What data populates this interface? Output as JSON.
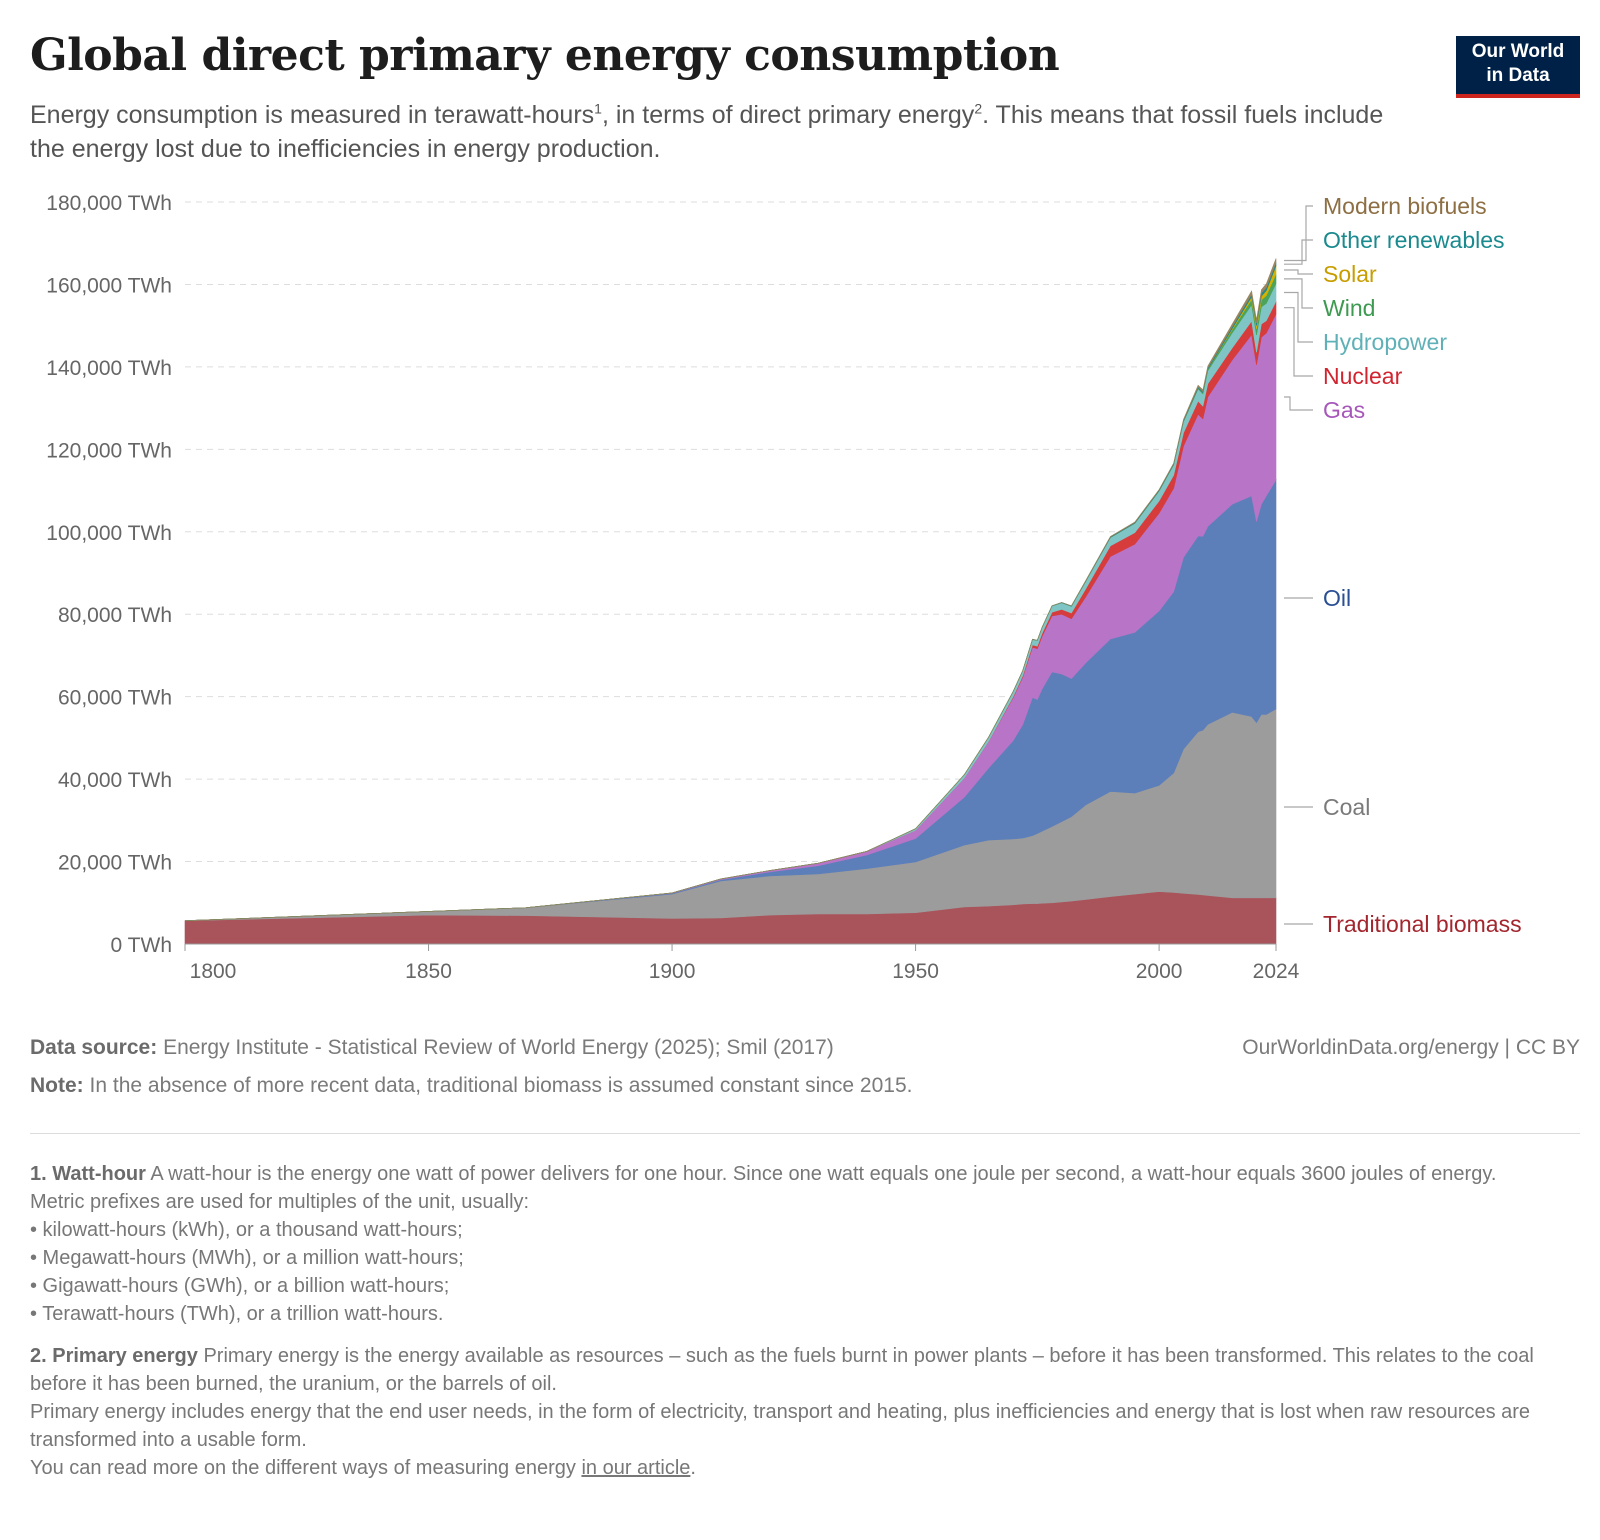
{
  "header": {
    "title": "Global direct primary energy consumption",
    "subtitle_part1": "Energy consumption is measured in terawatt-hours",
    "subtitle_sup1": "1",
    "subtitle_part2": ", in terms of direct primary energy",
    "subtitle_sup2": "2",
    "subtitle_part3": ". This means that fossil fuels include the energy lost due to inefficiencies in energy production.",
    "logo_line1": "Our World",
    "logo_line2": "in Data"
  },
  "footer": {
    "source_label": "Data source:",
    "source_text": "Energy Institute - Statistical Review of World Energy (2025); Smil (2017)",
    "source_right": "OurWorldinData.org/energy | CC BY",
    "note_label": "Note:",
    "note_text": "In the absence of more recent data, traditional biomass is assumed constant since 2015."
  },
  "footnotes": {
    "fn1_title": "1. Watt-hour",
    "fn1_text": "A watt-hour is the energy one watt of power delivers for one hour. Since one watt equals one joule per second, a watt-hour equals 3600 joules of energy.",
    "fn1_line2": "Metric prefixes are used for multiples of the unit, usually:",
    "fn1_bullets": [
      "• kilowatt-hours (kWh), or a thousand watt-hours;",
      "• Megawatt-hours (MWh), or a million watt-hours;",
      "• Gigawatt-hours (GWh), or a billion watt-hours;",
      "• Terawatt-hours (TWh), or a trillion watt-hours."
    ],
    "fn2_title": "2. Primary energy",
    "fn2_text": "Primary energy is the energy available as resources – such as the fuels burnt in power plants – before it has been transformed. This relates to the coal before it has been burned, the uranium, or the barrels of oil.",
    "fn2_line2": "Primary energy includes energy that the end user needs, in the form of electricity, transport and heating, plus inefficiencies and energy that is lost when raw resources are transformed into a usable form.",
    "fn2_line3_pre": "You can read more on the different ways of measuring energy ",
    "fn2_link": "in our article",
    "fn2_line3_post": "."
  },
  "chart_data": {
    "type": "area",
    "stacked": true,
    "title": "Global direct primary energy consumption",
    "ylim": [
      0,
      180000
    ],
    "xlim": [
      1800,
      2024
    ],
    "y_ticks": [
      0,
      20000,
      40000,
      60000,
      80000,
      100000,
      120000,
      140000,
      160000,
      180000
    ],
    "y_tick_labels": [
      "0 TWh",
      "20,000 TWh",
      "40,000 TWh",
      "60,000 TWh",
      "80,000 TWh",
      "100,000 TWh",
      "120,000 TWh",
      "140,000 TWh",
      "160,000 TWh",
      "180,000 TWh"
    ],
    "x_ticks": [
      1800,
      1850,
      1900,
      1950,
      2000,
      2024
    ],
    "x_tick_labels": [
      "1800",
      "1850",
      "1900",
      "1950",
      "2000",
      "2024"
    ],
    "grid": "horizontal dashed",
    "legend_placement": "right, inline labels",
    "x": [
      1800,
      1850,
      1870,
      1900,
      1910,
      1920,
      1930,
      1940,
      1950,
      1960,
      1965,
      1970,
      1972,
      1974,
      1975,
      1976,
      1978,
      1980,
      1982,
      1985,
      1990,
      1995,
      2000,
      2003,
      2005,
      2008,
      2009,
      2010,
      2015,
      2019,
      2020,
      2021,
      2022,
      2024
    ],
    "series": [
      {
        "name": "Traditional biomass",
        "color": "#a9545b",
        "values": [
          5650,
          7000,
          6900,
          6200,
          6300,
          7000,
          7300,
          7300,
          7600,
          9000,
          9200,
          9500,
          9700,
          9800,
          9800,
          9900,
          10000,
          10200,
          10400,
          10800,
          11500,
          12100,
          12700,
          12500,
          12300,
          12000,
          11900,
          11800,
          11200,
          11200,
          11200,
          11200,
          11200,
          11200
        ]
      },
      {
        "name": "Coal",
        "color": "#9c9c9c",
        "values": [
          0,
          900,
          1900,
          5900,
          9000,
          9500,
          9700,
          11000,
          12300,
          15000,
          16000,
          16000,
          16000,
          16500,
          17000,
          17500,
          18500,
          19500,
          20500,
          23000,
          25500,
          24500,
          25800,
          29000,
          35000,
          39500,
          40000,
          41500,
          45000,
          44000,
          42500,
          44500,
          44500,
          45800
        ]
      },
      {
        "name": "Oil",
        "color": "#5c7fba",
        "values": [
          0,
          0,
          10,
          200,
          300,
          1000,
          2000,
          3300,
          5700,
          11600,
          17500,
          23800,
          27500,
          33500,
          32500,
          34500,
          37500,
          35800,
          33500,
          34500,
          37000,
          39000,
          42300,
          44000,
          46500,
          47500,
          47000,
          48000,
          50500,
          53500,
          48800,
          51000,
          53000,
          55600
        ]
      },
      {
        "name": "Gas",
        "color": "#b874c6",
        "values": [
          0,
          0,
          0,
          100,
          200,
          300,
          600,
          900,
          2000,
          4700,
          6400,
          10400,
          11500,
          12200,
          12300,
          12800,
          13600,
          14500,
          14500,
          16000,
          20000,
          21400,
          23700,
          25100,
          27000,
          29500,
          28500,
          31400,
          35000,
          39100,
          38000,
          40500,
          39500,
          40200
        ]
      },
      {
        "name": "Nuclear",
        "color": "#d73c3c",
        "values": [
          0,
          0,
          0,
          0,
          0,
          0,
          0,
          0,
          0,
          0,
          60,
          250,
          350,
          550,
          650,
          720,
          900,
          1200,
          1400,
          2000,
          2600,
          2800,
          3000,
          3150,
          3200,
          3200,
          3100,
          3200,
          2900,
          3300,
          3050,
          3200,
          3000,
          3100
        ]
      },
      {
        "name": "Hydropower",
        "color": "#7fc5c6",
        "values": [
          0,
          0,
          0,
          0,
          0,
          0,
          0,
          0,
          370,
          760,
          1000,
          1200,
          1250,
          1350,
          1400,
          1430,
          1500,
          1600,
          1650,
          1800,
          2000,
          2250,
          2400,
          2500,
          2700,
          2950,
          2950,
          3150,
          3650,
          3950,
          4150,
          4150,
          4200,
          4300
        ]
      },
      {
        "name": "Wind",
        "color": "#4ca35a",
        "values": [
          0,
          0,
          0,
          0,
          0,
          0,
          0,
          0,
          0,
          0,
          0,
          0,
          0,
          0,
          0,
          0,
          0,
          0,
          0,
          0,
          5,
          10,
          30,
          60,
          100,
          200,
          250,
          320,
          800,
          1300,
          1500,
          1700,
          1900,
          2300
        ]
      },
      {
        "name": "Solar",
        "color": "#d4b300",
        "values": [
          0,
          0,
          0,
          0,
          0,
          0,
          0,
          0,
          0,
          0,
          0,
          0,
          0,
          0,
          0,
          0,
          0,
          0,
          0,
          0,
          0,
          0,
          1,
          2,
          4,
          10,
          20,
          30,
          230,
          650,
          800,
          950,
          1200,
          2000
        ]
      },
      {
        "name": "Other renewables",
        "color": "#27868b",
        "values": [
          0,
          0,
          0,
          0,
          0,
          0,
          0,
          0,
          0,
          0,
          10,
          20,
          25,
          30,
          35,
          40,
          50,
          70,
          80,
          120,
          170,
          200,
          220,
          240,
          270,
          320,
          340,
          370,
          500,
          600,
          650,
          700,
          750,
          800
        ]
      },
      {
        "name": "Modern biofuels",
        "color": "#9a8560",
        "values": [
          0,
          0,
          0,
          0,
          0,
          0,
          0,
          0,
          0,
          0,
          0,
          0,
          0,
          0,
          0,
          0,
          0,
          10,
          20,
          70,
          80,
          100,
          110,
          130,
          190,
          350,
          380,
          430,
          600,
          800,
          750,
          800,
          900,
          1000
        ]
      }
    ]
  },
  "legend_colors": {
    "Modern biofuels": "#8d6f43",
    "Other renewables": "#1a8a8e",
    "Solar": "#c79d00",
    "Wind": "#3d9a50",
    "Hydropower": "#5fb1b7",
    "Nuclear": "#d1242f",
    "Gas": "#a657b9",
    "Oil": "#2a4f95",
    "Coal": "#7a7a7a",
    "Traditional biomass": "#a3252e"
  }
}
